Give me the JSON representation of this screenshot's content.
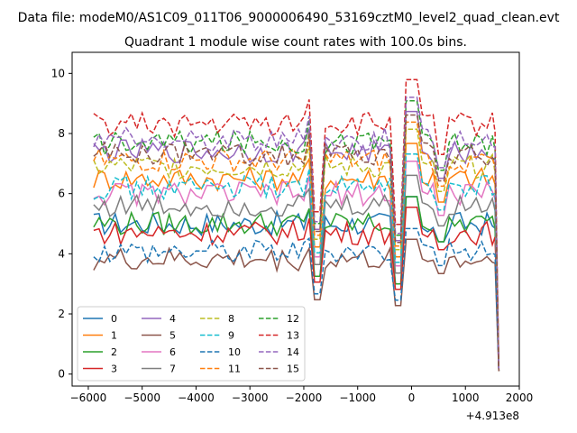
{
  "figure": {
    "suptitle": "Data file: modeM0/AS1C09_011T06_9000006490_53169cztM0_level2_quad_clean.evt"
  },
  "chart_data": {
    "type": "line",
    "title": "Quadrant 1 module wise count rates with 100.0s bins.",
    "xlabel": "",
    "ylabel": "",
    "x_offset_label": "+4.913e8",
    "xlim": [
      -6300,
      2000
    ],
    "ylim": [
      -0.4,
      10.7
    ],
    "x_ticks": [
      -6000,
      -5000,
      -4000,
      -3000,
      -2000,
      -1000,
      0,
      1000,
      2000
    ],
    "x_tick_labels": [
      "−6000",
      "−5000",
      "−4000",
      "−3000",
      "−2000",
      "−1000",
      "0",
      "1000",
      "2000"
    ],
    "y_ticks": [
      0,
      2,
      4,
      6,
      8,
      10
    ],
    "y_tick_labels": [
      "0",
      "2",
      "4",
      "6",
      "8",
      "10"
    ],
    "grid": false,
    "legend_location": "lower-left",
    "legend_columns": 4,
    "x": [
      -5900,
      -5800,
      -5700,
      -5600,
      -5500,
      -5400,
      -5300,
      -5200,
      -5100,
      -5000,
      -4900,
      -4800,
      -4700,
      -4600,
      -4500,
      -4400,
      -4300,
      -4200,
      -4100,
      -4000,
      -3900,
      -3800,
      -3700,
      -3600,
      -3500,
      -3400,
      -3300,
      -3200,
      -3100,
      -3000,
      -2900,
      -2800,
      -2700,
      -2600,
      -2500,
      -2400,
      -2300,
      -2200,
      -2100,
      -2000,
      -1900,
      -1800,
      -1700,
      -1600,
      -1500,
      -1400,
      -1300,
      -1200,
      -1100,
      -1000,
      -900,
      -800,
      -700,
      -600,
      -500,
      -400,
      -300,
      -200,
      -100,
      0,
      100,
      200,
      300,
      400,
      500,
      600,
      700,
      800,
      900,
      1000,
      1100,
      1200,
      1300,
      1400,
      1500,
      1550,
      1620
    ],
    "series": [
      {
        "name": "0",
        "color": "#1f77b4",
        "dash": "solid",
        "base": 5.0
      },
      {
        "name": "1",
        "color": "#ff7f0e",
        "dash": "solid",
        "base": 6.5
      },
      {
        "name": "2",
        "color": "#2ca02c",
        "dash": "solid",
        "base": 5.0
      },
      {
        "name": "3",
        "color": "#d62728",
        "dash": "solid",
        "base": 4.7
      },
      {
        "name": "4",
        "color": "#9467bd",
        "dash": "solid",
        "base": 7.4
      },
      {
        "name": "5",
        "color": "#8c564b",
        "dash": "solid",
        "base": 3.8
      },
      {
        "name": "6",
        "color": "#e377c2",
        "dash": "solid",
        "base": 6.0
      },
      {
        "name": "7",
        "color": "#7f7f7f",
        "dash": "solid",
        "base": 5.6
      },
      {
        "name": "8",
        "color": "#bcbd22",
        "dash": "dashed",
        "base": 6.9
      },
      {
        "name": "9",
        "color": "#17becf",
        "dash": "dashed",
        "base": 6.2
      },
      {
        "name": "10",
        "color": "#1f77b4",
        "dash": "dashed",
        "base": 4.1
      },
      {
        "name": "11",
        "color": "#ff7f0e",
        "dash": "dashed",
        "base": 7.1
      },
      {
        "name": "12",
        "color": "#2ca02c",
        "dash": "dashed",
        "base": 7.7
      },
      {
        "name": "13",
        "color": "#d62728",
        "dash": "dashed",
        "base": 8.3
      },
      {
        "name": "14",
        "color": "#9467bd",
        "dash": "dashed",
        "base": 7.8
      },
      {
        "name": "15",
        "color": "#8c564b",
        "dash": "dashed",
        "base": 7.3
      }
    ]
  }
}
